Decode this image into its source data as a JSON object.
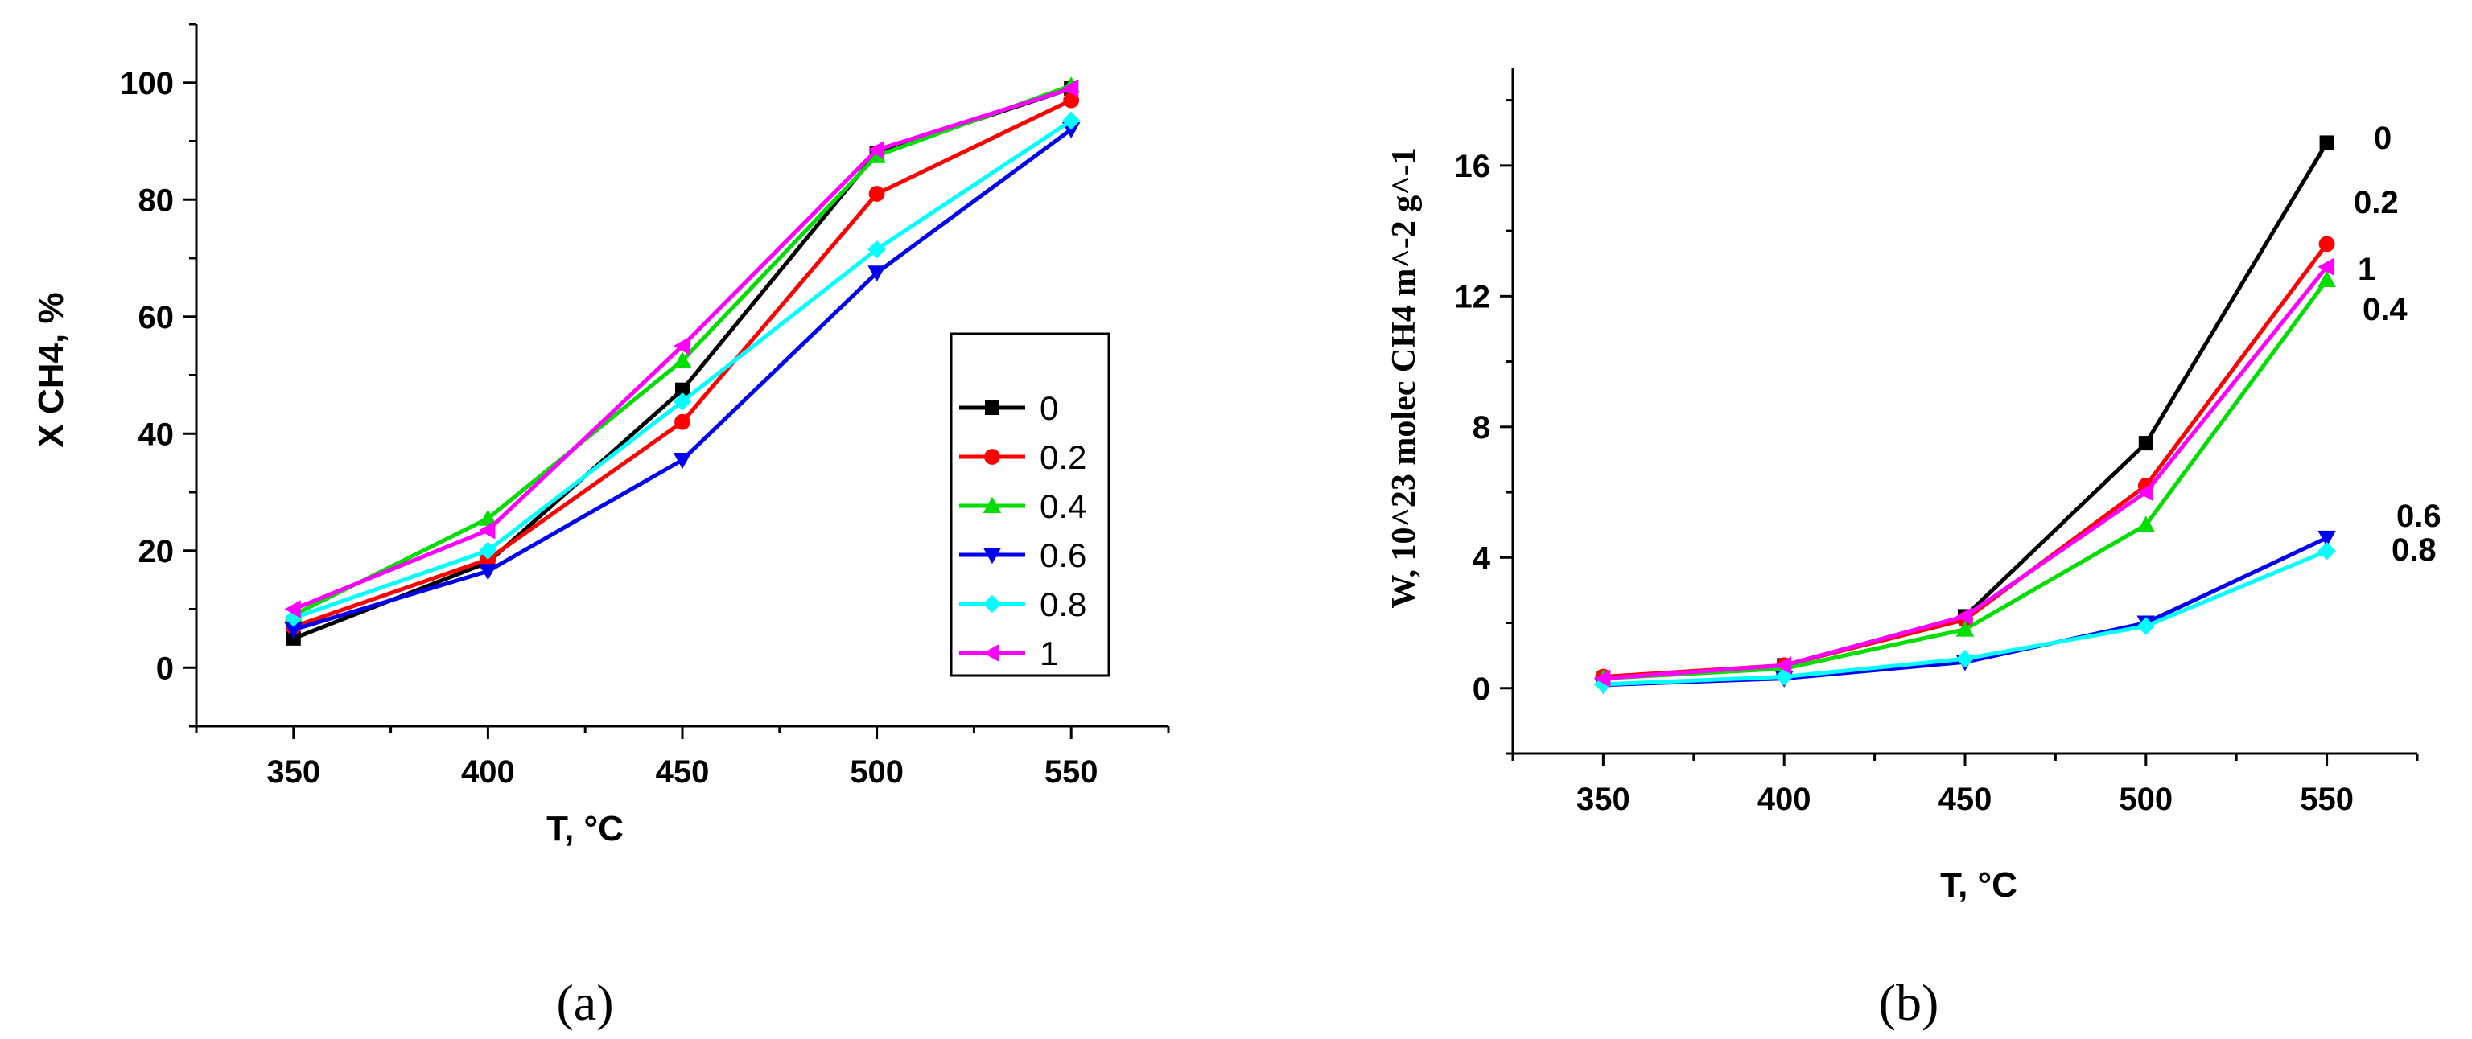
{
  "figure": {
    "panel_a": "(a)",
    "panel_b": "(b)"
  },
  "chart_data": [
    {
      "type": "line",
      "id": "a",
      "title": "",
      "xlabel": "T, °C",
      "ylabel": "X CH4, %",
      "x": [
        350,
        400,
        450,
        500,
        550
      ],
      "xlim": [
        325,
        575
      ],
      "ylim": [
        -10,
        110
      ],
      "xticks": [
        350,
        400,
        450,
        500,
        550
      ],
      "yticks": [
        0,
        20,
        40,
        60,
        80,
        100
      ],
      "legend_position": "right-center",
      "series": [
        {
          "name": "0",
          "color": "#000000",
          "marker": "square",
          "values": [
            5,
            18,
            47.5,
            88,
            99
          ]
        },
        {
          "name": "0.2",
          "color": "#ff0000",
          "marker": "circle",
          "values": [
            7,
            18.5,
            42,
            81,
            97
          ]
        },
        {
          "name": "0.4",
          "color": "#00dd00",
          "marker": "triangle-up",
          "values": [
            9,
            25.5,
            52.5,
            87.5,
            99.5
          ]
        },
        {
          "name": "0.6",
          "color": "#0000ee",
          "marker": "triangle-down",
          "values": [
            6.5,
            16.5,
            35.5,
            67.5,
            92
          ]
        },
        {
          "name": "0.8",
          "color": "#00ffff",
          "marker": "diamond",
          "values": [
            8.5,
            20,
            45.5,
            71.5,
            93.5
          ]
        },
        {
          "name": "1",
          "color": "#ff00ff",
          "marker": "triangle-left",
          "values": [
            10,
            23.5,
            55,
            88.5,
            99
          ]
        }
      ]
    },
    {
      "type": "line",
      "id": "b",
      "title": "",
      "xlabel": "T, °C",
      "ylabel": "W, 10^23 molec CH4 m^-2 g^-1",
      "x": [
        350,
        400,
        450,
        500,
        550
      ],
      "xlim": [
        325,
        575
      ],
      "ylim": [
        -2,
        19
      ],
      "xticks": [
        350,
        400,
        450,
        500,
        550
      ],
      "yticks": [
        0,
        4,
        8,
        12,
        16
      ],
      "series": [
        {
          "name": "0",
          "color": "#000000",
          "marker": "square",
          "values": [
            0.3,
            0.7,
            2.2,
            7.5,
            16.7
          ]
        },
        {
          "name": "0.2",
          "color": "#ff0000",
          "marker": "circle",
          "values": [
            0.35,
            0.7,
            2.1,
            6.2,
            13.6
          ]
        },
        {
          "name": "0.4",
          "color": "#00dd00",
          "marker": "triangle-up",
          "values": [
            0.3,
            0.6,
            1.8,
            5.0,
            12.5
          ]
        },
        {
          "name": "0.6",
          "color": "#0000ee",
          "marker": "triangle-down",
          "values": [
            0.1,
            0.3,
            0.8,
            2.0,
            4.6
          ]
        },
        {
          "name": "0.8",
          "color": "#00ffff",
          "marker": "diamond",
          "values": [
            0.12,
            0.35,
            0.9,
            1.9,
            4.2
          ]
        },
        {
          "name": "1",
          "color": "#ff00ff",
          "marker": "triangle-left",
          "values": [
            0.3,
            0.7,
            2.2,
            6.0,
            12.9
          ]
        }
      ],
      "series_labels": [
        "0",
        "0.2",
        "1",
        "0.4",
        "0.6",
        "0.8"
      ]
    }
  ]
}
